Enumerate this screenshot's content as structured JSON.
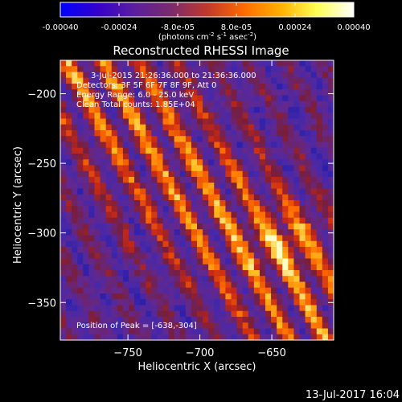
{
  "colorbar": {
    "ticks": [
      "-0.00040",
      "-0.00024",
      "-8.0e-05",
      "8.0e-05",
      "0.00024",
      "0.00040"
    ],
    "unit_label": "(photons cm",
    "unit_sup1": "-2",
    "unit_mid": " s",
    "unit_sup2": "-1",
    "unit_end": " asec",
    "unit_sup3": "-2",
    "unit_close": ")"
  },
  "annotations": {
    "time_range": "3-Jul-2015 21:26:36.000 to 21:36:36.000",
    "detectors": "Detectors: 3F 5F 6F 7F 8F 9F, Att 0",
    "energy_range": "Energy Range: 6.0 - 25.0 keV",
    "clean_counts": "Clean     Total counts: 1.85E+04",
    "peak_position": "Position of Peak = [-638,-304]"
  },
  "footer": {
    "timestamp": "13-Jul-2017 16:04"
  },
  "chart_data": {
    "type": "heatmap",
    "title": "Reconstructed RHESSI Image",
    "xlabel": "Heliocentric X (arcsec)",
    "ylabel": "Heliocentric Y (arcsec)",
    "xlim": [
      -797,
      -607
    ],
    "ylim": [
      -377,
      -176
    ],
    "xticks": [
      -750,
      -700,
      -650
    ],
    "xtick_labels": [
      "−750",
      "−700",
      "−650"
    ],
    "yticks": [
      -200,
      -250,
      -300,
      -350
    ],
    "ytick_labels": [
      "−200",
      "−250",
      "−300",
      "−350"
    ],
    "colormap": "rhessi-fire",
    "value_range": [
      -0.0004,
      0.0004
    ],
    "peak": [
      -638,
      -304
    ],
    "grid": false,
    "colorbar_colors": [
      "#0000ff",
      "#3300cc",
      "#5a1ea0",
      "#7a2a6e",
      "#c0392b",
      "#ff6a00",
      "#ffb000",
      "#ffff55",
      "#ffffff"
    ]
  }
}
